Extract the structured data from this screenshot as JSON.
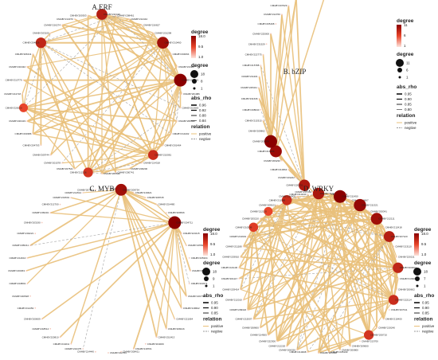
{
  "colors": {
    "positive": "#e9c07a",
    "negative": "#9a9a9a",
    "degree_low": "#fbe3db",
    "degree_high": "#8b0000"
  },
  "panels": [
    {
      "id": "erf",
      "title": "A.ERF",
      "ids": [
        "CMHBY211049",
        "CMHBY208461",
        "CMHBY212444",
        "CMHBY216627",
        "CMHBY201298",
        "CMHBY210460",
        "CMHBY204664",
        "CMHBY213207",
        "CMHBY206461",
        "CMHBY201986",
        "CMHBY213663",
        "CMHBY208622",
        "CMHBY214402",
        "CMHBY201464",
        "CMHBY210081",
        "CMHBY214318",
        "CMHBY206200",
        "CMHBY200741",
        "CMHBY205542",
        "CMHBY212216",
        "CMHBY207521",
        "CMHBY201578",
        "CMHBY209744",
        "CMHBY204703",
        "CMHBY203386",
        "CMHBY220419",
        "CMHBY226520",
        "CMHBY214718",
        "CMHBY210776",
        "CMHBY210432",
        "CMHBY206311",
        "CMHBY204826",
        "CMHBY203100",
        "CMHBY216274",
        "CMHBY214070",
        "CMHBY200303"
      ],
      "hubs": [
        0,
        5,
        8,
        14,
        19,
        26,
        31
      ],
      "hub_degrees": [
        14,
        16,
        18,
        12,
        11,
        9,
        13
      ],
      "legend": {
        "degree_title": "degree",
        "degree_ticks": [
          "18.0",
          "9.5",
          "1.0"
        ],
        "size_title": "degree",
        "size_ticks": [
          "18",
          "8",
          "1"
        ],
        "rho_title": "abs_rho",
        "rho_ticks": [
          "0.96",
          "0.92",
          "0.88",
          "0.84"
        ],
        "rel_title": "relation",
        "rel_ticks": [
          "positive",
          "negtive"
        ]
      }
    },
    {
      "id": "bzip",
      "title": "B. bZIP",
      "ids": [
        "CMHBY207464",
        "CMHBY220231",
        "CMHBY219222",
        "CMHBY210664",
        "CMHBY209230",
        "CMHBY216256",
        "CMHBY205099",
        "CMHBY209862",
        "CMHBY215315",
        "CMHBY208640",
        "CMHBY231636",
        "CMHBY225341",
        "CMHBY211101",
        "CMHBY215788",
        "CMHBY222775",
        "CMHBY231529",
        "CMHBY225000",
        "CMHBY205168",
        "CMHBY212760",
        "CMHBY207629",
        "CMHBY210231",
        "CMHBY214037",
        "CMHBY219719",
        "CMHBY200615",
        "CMHBY200499"
      ],
      "hubs": [
        1,
        5,
        6
      ],
      "hub_degrees": [
        9,
        10,
        11
      ],
      "legend": {
        "degree_title": "degree",
        "degree_ticks": [
          "11",
          "6",
          "1"
        ],
        "size_title": "degree",
        "size_ticks": [
          "11",
          "6",
          "1"
        ],
        "rho_title": "abs_rho",
        "rho_ticks": [
          "0.95",
          "0.90",
          "0.85",
          "0.80"
        ],
        "rel_title": "relation",
        "rel_ticks": [
          "positive",
          "negtive"
        ]
      }
    },
    {
      "id": "myb",
      "title": "C. MYB",
      "ids": [
        "CMHBY220098",
        "CMHBY209734",
        "CMHBY216621",
        "CMHBY208745",
        "CMHBY214480",
        "CMHBY209536",
        "CMHBY204711",
        "CMHBY223415",
        "CMHBY215526",
        "CMHBY205304",
        "CMHBY210064",
        "CMHBY203371",
        "CMHBY216778",
        "CMHBY218602",
        "CMHBY221064",
        "CMHBY208216",
        "CMHBY210413",
        "CMHBY204009",
        "CMHBY218701",
        "CMHBY208421",
        "CMHBY212764",
        "CMHBY214440",
        "CMHBY210475",
        "CMHBY210211",
        "CMHBY220810",
        "CMHBY218514",
        "CMHBY200609",
        "CMHBY211453",
        "CMHBY220528",
        "CMHBY218801",
        "CMHBY216063",
        "CMHBY214610",
        "CMHBY205211",
        "CMHBY204221",
        "CMHBY203190",
        "CMHBY209401",
        "CMHBY212700",
        "CMHBY219501",
        "CMHBY214512",
        "CMHBY207801"
      ],
      "hubs": [
        1,
        6
      ],
      "hub_degrees": [
        16,
        18
      ],
      "legend": {
        "degree_title": "degree",
        "degree_ticks": [
          "18.0",
          "9.5",
          "1.0"
        ],
        "size_title": "degree",
        "size_ticks": [
          "18",
          "9",
          "1"
        ],
        "rho_title": "abs_rho",
        "rho_ticks": [
          "0.95",
          "0.90",
          "0.85"
        ],
        "rel_title": "relation",
        "rel_ticks": [
          "positive",
          "negtive"
        ]
      }
    },
    {
      "id": "wrky",
      "title": "D. WRKY",
      "ids": [
        "CMHBY204106",
        "CMHBY214021",
        "CMHBY211450",
        "CMHBY210667",
        "CMHBY211321",
        "CMHBY200341",
        "CMHBY212111",
        "CMHBY212418",
        "CMHBY207120",
        "CMHBY213110",
        "CMHBY220211",
        "CMHBY203004",
        "CMHBY219900",
        "CMHBY200602",
        "CMHBY222114",
        "CMHBY207011",
        "CMHBY215400",
        "CMHBY219240",
        "CMHBY200710",
        "CMHBY213700",
        "CMHBY209600",
        "CMHBY200800",
        "CMHBY205109",
        "CMHBY205330",
        "CMHBY210008",
        "CMHBY206320",
        "CMHBY212220",
        "CMHBY222300",
        "CMHBY214505",
        "CMHBY208600",
        "CMHBY215007",
        "CMHBY209322",
        "CMHBY212010",
        "CMHBY203414",
        "CMHBY201117",
        "CMHBY221130",
        "CMHBY203910",
        "CMHBY211180",
        "CMHBY213901",
        "CMHBY210099",
        "CMHBY205210",
        "CMHBY212120",
        "CMHBY209101",
        "CMHBY211900",
        "CMHBY214005",
        "CMHBY210240"
      ],
      "hubs": [
        0,
        2,
        4,
        6,
        8,
        11,
        14,
        18,
        39,
        41,
        43
      ],
      "hub_degrees": [
        15,
        18,
        17,
        16,
        14,
        13,
        12,
        11,
        10,
        9,
        12
      ],
      "legend": {
        "degree_title": "degree",
        "degree_ticks": [
          "18.0",
          "9.5",
          "1.0"
        ],
        "size_title": "degree",
        "size_ticks": [
          "18",
          "7",
          "1"
        ],
        "rho_title": "abs_rho",
        "rho_ticks": [
          "0.95",
          "0.90",
          "0.85"
        ],
        "rel_title": "relation",
        "rel_ticks": [
          "positive",
          "negtive"
        ]
      }
    }
  ]
}
